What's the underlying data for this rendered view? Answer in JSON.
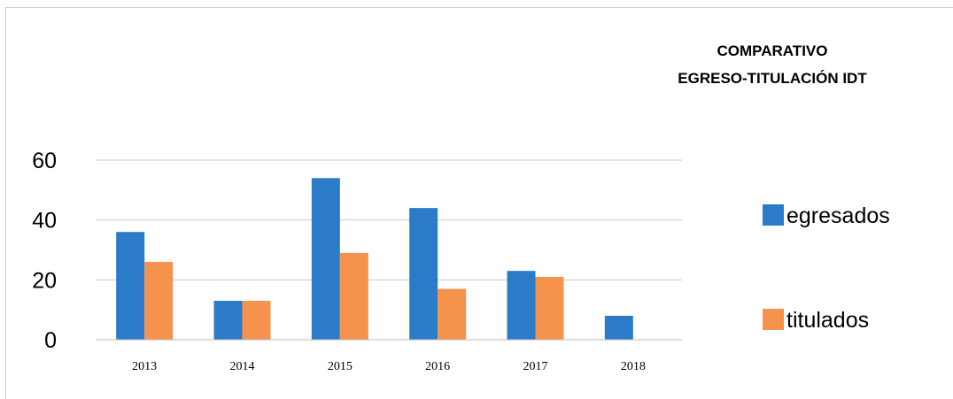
{
  "chart_data": {
    "type": "bar",
    "title": [
      "COMPARATIVO",
      "EGRESO-TITULACIÓN IDT"
    ],
    "categories": [
      "2013",
      "2014",
      "2015",
      "2016",
      "2017",
      "2018"
    ],
    "series": [
      {
        "name": "egresados",
        "values": [
          36,
          13,
          54,
          44,
          23,
          8
        ],
        "color": "#2B7BC9"
      },
      {
        "name": "titulados",
        "values": [
          26,
          13,
          29,
          17,
          21,
          0
        ],
        "color": "#F5924B"
      }
    ],
    "ylim": [
      0,
      60
    ],
    "yticks": [
      0,
      20,
      40,
      60
    ],
    "grid": true,
    "legend": "right"
  }
}
